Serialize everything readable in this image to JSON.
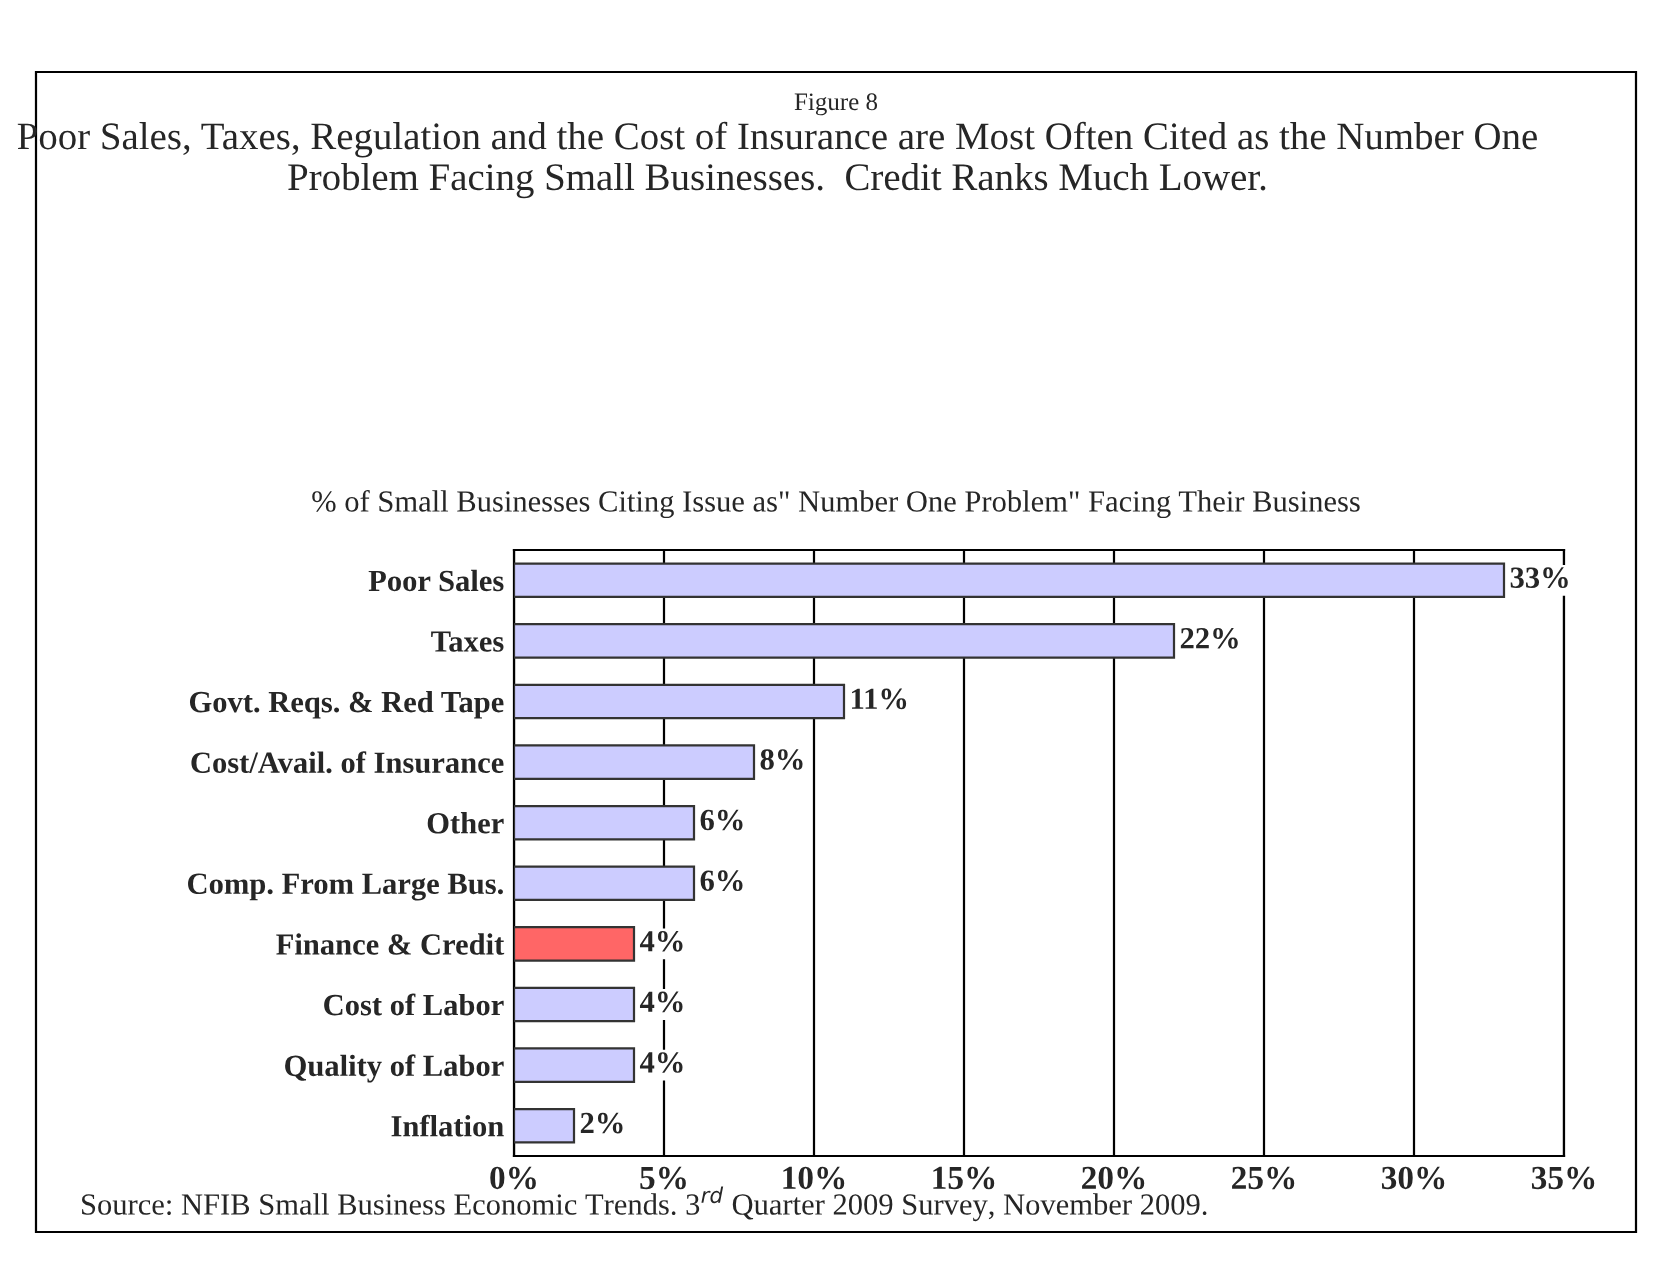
{
  "chart_data": {
    "type": "bar",
    "orientation": "horizontal",
    "title": "Figure 8",
    "subtitle": "Poor Sales, Taxes, Regulation and the Cost of Insurance are Most Often Cited as the Number One Problem Facing Small Businesses.  Credit Ranks Much Lower.",
    "annotations": [
      "% of Small Businesses Citing Issue as\" Number One Problem\" Facing Their Business",
      "Source: NFIB Small Business Economic Trends. 3$^{rd}$ Quarter 2009 Survey, November 2009."
    ],
    "categories": [
      "Poor Sales",
      "Taxes",
      "Govt. Reqs. & Red Tape",
      "Cost/Avail. of Insurance",
      "Other",
      "Comp. From Large Bus.",
      "Finance & Credit",
      "Cost of Labor",
      "Quality of Labor",
      "Inflation"
    ],
    "values": [
      33,
      22,
      11,
      8,
      6,
      6,
      4,
      4,
      4,
      2
    ],
    "colors": [
      "#ccccff",
      "#ccccff",
      "#ccccff",
      "#ccccff",
      "#ccccff",
      "#ccccff",
      "#ff6666",
      "#ccccff",
      "#ccccff",
      "#ccccff"
    ],
    "value_labels": [
      "33%",
      "22%",
      "11%",
      "8%",
      "6%",
      "6%",
      "4%",
      "4%",
      "4%",
      "2%"
    ],
    "xlim": [
      0,
      35
    ],
    "xticks": [
      {
        "value": 0,
        "label": "0%"
      },
      {
        "value": 5,
        "label": "5%"
      },
      {
        "value": 10,
        "label": "10%"
      },
      {
        "value": 15,
        "label": "15%"
      },
      {
        "value": 20,
        "label": "20%"
      },
      {
        "value": 25,
        "label": "25%"
      },
      {
        "value": 30,
        "label": "30%"
      },
      {
        "value": 35,
        "label": "35%"
      }
    ],
    "grid": "x",
    "legend": false
  }
}
